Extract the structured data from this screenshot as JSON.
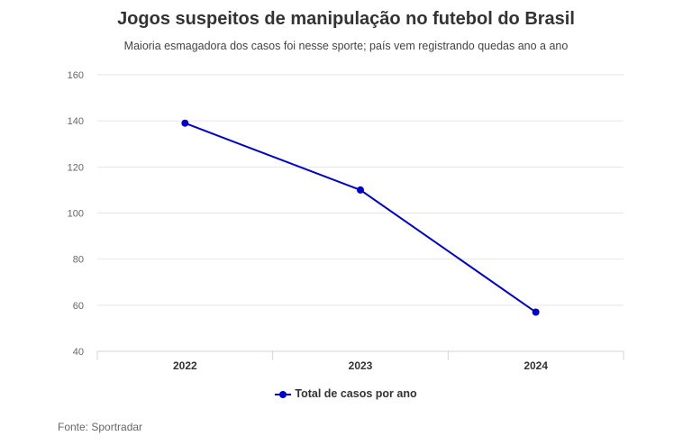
{
  "chart_data": {
    "type": "line",
    "title": "Jogos suspeitos de manipulação no futebol do Brasil",
    "subtitle": "Maioria esmagadora dos casos foi nesse sporte; país vem registrando quedas ano a ano",
    "categories": [
      "2022",
      "2023",
      "2024"
    ],
    "series": [
      {
        "name": "Total de casos por ano",
        "values": [
          139,
          110,
          57
        ],
        "color": "#0000cc"
      }
    ],
    "yticks": [
      "40",
      "60",
      "80",
      "100",
      "120",
      "140",
      "160"
    ],
    "ylim": [
      40,
      160
    ],
    "xlabel": "",
    "ylabel": "",
    "grid": true,
    "legend_position": "bottom-center",
    "source": "Fonte: Sportradar"
  }
}
